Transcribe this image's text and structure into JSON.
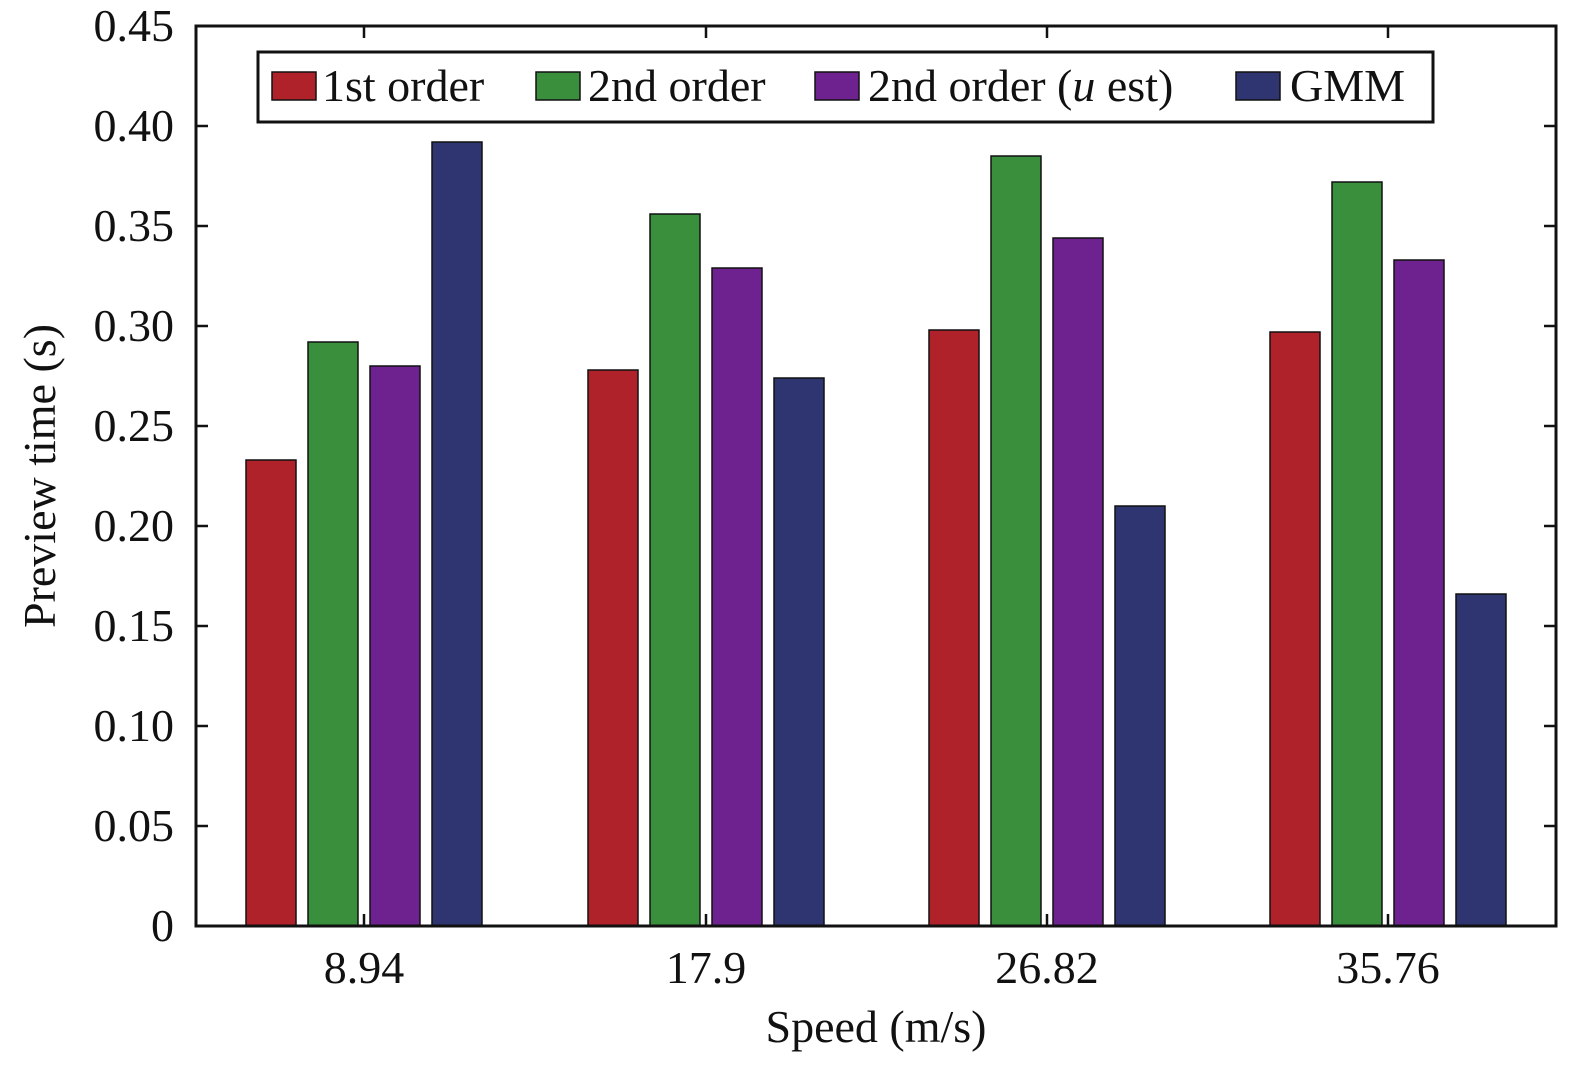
{
  "chart_data": {
    "type": "bar",
    "categories": [
      "8.94",
      "17.9",
      "26.82",
      "35.76"
    ],
    "series": [
      {
        "name": "1st order",
        "color": "#b0222a",
        "values": [
          0.233,
          0.278,
          0.298,
          0.297
        ]
      },
      {
        "name": "2nd order",
        "color": "#3a8f3c",
        "values": [
          0.292,
          0.356,
          0.385,
          0.372
        ]
      },
      {
        "name": "2nd order (u est)",
        "name_parts": [
          "2nd order (",
          "u",
          " est)"
        ],
        "color": "#6d2290",
        "values": [
          0.28,
          0.329,
          0.344,
          0.333
        ]
      },
      {
        "name": "GMM",
        "color": "#2f3570",
        "values": [
          0.392,
          0.274,
          0.21,
          0.166
        ]
      }
    ],
    "xlabel": "Speed (m/s)",
    "ylabel": "Preview time (s)",
    "ylim": [
      0,
      0.45
    ],
    "yticks": [
      "0",
      "0.05",
      "0.10",
      "0.15",
      "0.20",
      "0.25",
      "0.30",
      "0.35",
      "0.40",
      "0.45"
    ],
    "ytick_values": [
      0,
      0.05,
      0.1,
      0.15,
      0.2,
      0.25,
      0.3,
      0.35,
      0.4,
      0.45
    ],
    "grid": false,
    "legend_position": "top",
    "legend_orientation": "horizontal"
  }
}
